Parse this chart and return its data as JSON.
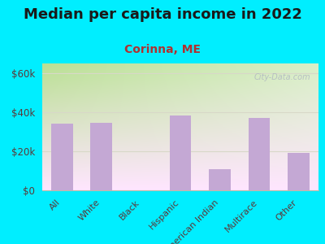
{
  "title": "Median per capita income in 2022",
  "subtitle": "Corinna, ME",
  "categories": [
    "All",
    "White",
    "Black",
    "Hispanic",
    "American Indian",
    "Multirace",
    "Other"
  ],
  "values": [
    34000,
    34500,
    0,
    38500,
    11000,
    37000,
    19000
  ],
  "bar_color": "#c4a8d4",
  "title_fontsize": 13,
  "subtitle_fontsize": 10,
  "subtitle_color": "#b03030",
  "tick_label_color": "#5a3a3a",
  "background_outer": "#00eeff",
  "ylim": [
    0,
    65000
  ],
  "yticks": [
    0,
    20000,
    40000,
    60000
  ],
  "ytick_labels": [
    "$0",
    "$20k",
    "$40k",
    "$60k"
  ],
  "watermark": "City-Data.com",
  "plot_bg_colors": [
    "#c8e8b0",
    "#f0f8e8",
    "#f8f8e0"
  ],
  "grid_color": "#d8d8c8"
}
